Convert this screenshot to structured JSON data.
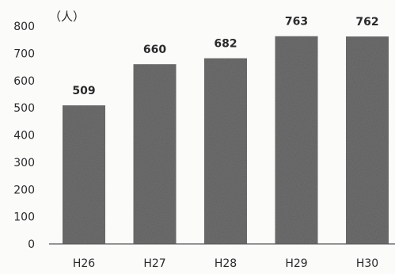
{
  "chart_data": {
    "type": "bar",
    "title": "",
    "unit_label": "（人）",
    "xlabel": "",
    "ylabel": "",
    "categories": [
      "H26",
      "H27",
      "H28",
      "H29",
      "H30"
    ],
    "values": [
      509,
      660,
      682,
      763,
      762
    ],
    "data_labels": [
      "509",
      "660",
      "682",
      "763",
      "762"
    ],
    "yticks": [
      0,
      100,
      200,
      300,
      400,
      500,
      600,
      700,
      800
    ],
    "ylim": [
      0,
      800
    ],
    "grid": false,
    "legend": "none",
    "bar_color": "#6f6f6f",
    "text_color": "#2a2a2a",
    "axis_color": "#555555"
  }
}
